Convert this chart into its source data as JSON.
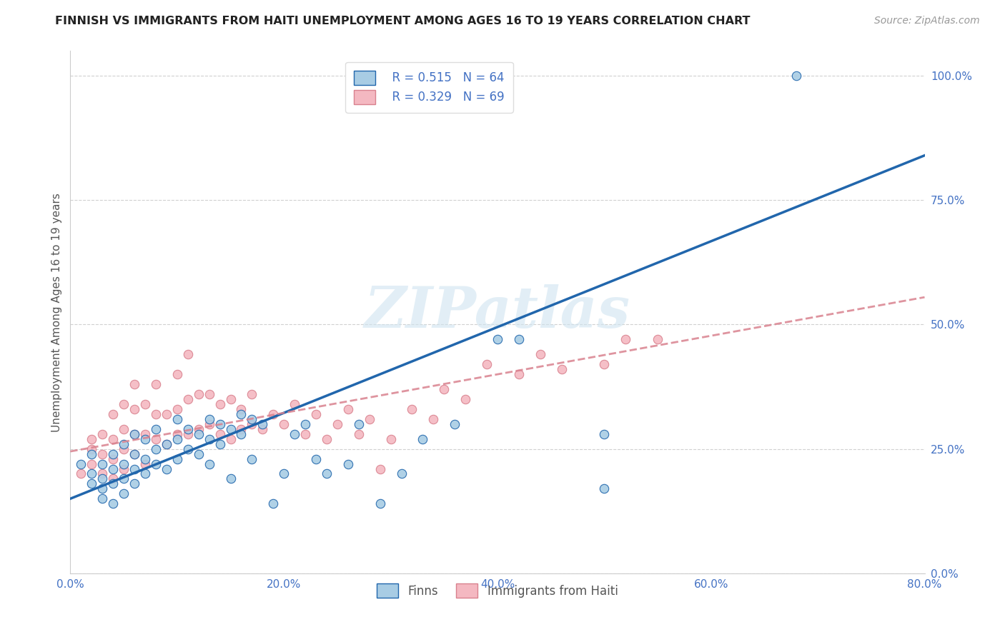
{
  "title": "FINNISH VS IMMIGRANTS FROM HAITI UNEMPLOYMENT AMONG AGES 16 TO 19 YEARS CORRELATION CHART",
  "source": "Source: ZipAtlas.com",
  "ylabel": "Unemployment Among Ages 16 to 19 years",
  "xlim": [
    0.0,
    0.8
  ],
  "ylim": [
    0.0,
    1.05
  ],
  "finns_R": 0.515,
  "finns_N": 64,
  "haiti_R": 0.329,
  "haiti_N": 69,
  "finns_color": "#a8cce4",
  "haiti_color": "#f4b8c1",
  "finns_line_color": "#2166ac",
  "haiti_line_color": "#d9818e",
  "watermark": "ZIPatlas",
  "legend_finns_label": "Finns",
  "legend_haiti_label": "Immigrants from Haiti",
  "finns_line_x0": 0.0,
  "finns_line_y0": 0.15,
  "finns_line_x1": 0.8,
  "finns_line_y1": 0.84,
  "haiti_line_x0": 0.0,
  "haiti_line_y0": 0.245,
  "haiti_line_x1": 0.8,
  "haiti_line_y1": 0.555,
  "finns_scatter_x": [
    0.01,
    0.02,
    0.02,
    0.02,
    0.03,
    0.03,
    0.03,
    0.03,
    0.04,
    0.04,
    0.04,
    0.04,
    0.05,
    0.05,
    0.05,
    0.05,
    0.06,
    0.06,
    0.06,
    0.06,
    0.07,
    0.07,
    0.07,
    0.08,
    0.08,
    0.08,
    0.09,
    0.09,
    0.1,
    0.1,
    0.1,
    0.11,
    0.11,
    0.12,
    0.12,
    0.13,
    0.13,
    0.13,
    0.14,
    0.14,
    0.15,
    0.15,
    0.16,
    0.16,
    0.17,
    0.17,
    0.18,
    0.19,
    0.2,
    0.21,
    0.22,
    0.23,
    0.24,
    0.26,
    0.27,
    0.29,
    0.31,
    0.33,
    0.36,
    0.4,
    0.42,
    0.5,
    0.5,
    0.68
  ],
  "finns_scatter_y": [
    0.22,
    0.18,
    0.2,
    0.24,
    0.17,
    0.19,
    0.22,
    0.15,
    0.18,
    0.21,
    0.24,
    0.14,
    0.16,
    0.19,
    0.22,
    0.26,
    0.18,
    0.21,
    0.24,
    0.28,
    0.2,
    0.23,
    0.27,
    0.22,
    0.25,
    0.29,
    0.21,
    0.26,
    0.23,
    0.27,
    0.31,
    0.25,
    0.29,
    0.24,
    0.28,
    0.27,
    0.31,
    0.22,
    0.26,
    0.3,
    0.19,
    0.29,
    0.28,
    0.32,
    0.23,
    0.31,
    0.3,
    0.14,
    0.2,
    0.28,
    0.3,
    0.23,
    0.2,
    0.22,
    0.3,
    0.14,
    0.2,
    0.27,
    0.3,
    0.47,
    0.47,
    0.17,
    0.28,
    1.0
  ],
  "haiti_scatter_x": [
    0.01,
    0.02,
    0.02,
    0.02,
    0.03,
    0.03,
    0.03,
    0.04,
    0.04,
    0.04,
    0.04,
    0.05,
    0.05,
    0.05,
    0.05,
    0.06,
    0.06,
    0.06,
    0.06,
    0.07,
    0.07,
    0.07,
    0.08,
    0.08,
    0.08,
    0.09,
    0.09,
    0.1,
    0.1,
    0.1,
    0.11,
    0.11,
    0.11,
    0.12,
    0.12,
    0.13,
    0.13,
    0.14,
    0.14,
    0.15,
    0.15,
    0.16,
    0.16,
    0.17,
    0.17,
    0.18,
    0.19,
    0.2,
    0.21,
    0.22,
    0.23,
    0.24,
    0.25,
    0.26,
    0.27,
    0.28,
    0.29,
    0.3,
    0.32,
    0.34,
    0.35,
    0.37,
    0.39,
    0.42,
    0.44,
    0.46,
    0.5,
    0.52,
    0.55
  ],
  "haiti_scatter_y": [
    0.2,
    0.22,
    0.25,
    0.27,
    0.2,
    0.24,
    0.28,
    0.19,
    0.23,
    0.27,
    0.32,
    0.21,
    0.25,
    0.29,
    0.34,
    0.24,
    0.28,
    0.33,
    0.38,
    0.22,
    0.28,
    0.34,
    0.27,
    0.32,
    0.38,
    0.26,
    0.32,
    0.28,
    0.33,
    0.4,
    0.28,
    0.35,
    0.44,
    0.29,
    0.36,
    0.3,
    0.36,
    0.28,
    0.34,
    0.27,
    0.35,
    0.29,
    0.33,
    0.3,
    0.36,
    0.29,
    0.32,
    0.3,
    0.34,
    0.28,
    0.32,
    0.27,
    0.3,
    0.33,
    0.28,
    0.31,
    0.21,
    0.27,
    0.33,
    0.31,
    0.37,
    0.35,
    0.42,
    0.4,
    0.44,
    0.41,
    0.42,
    0.47,
    0.47
  ],
  "background_color": "#ffffff",
  "grid_color": "#cccccc"
}
